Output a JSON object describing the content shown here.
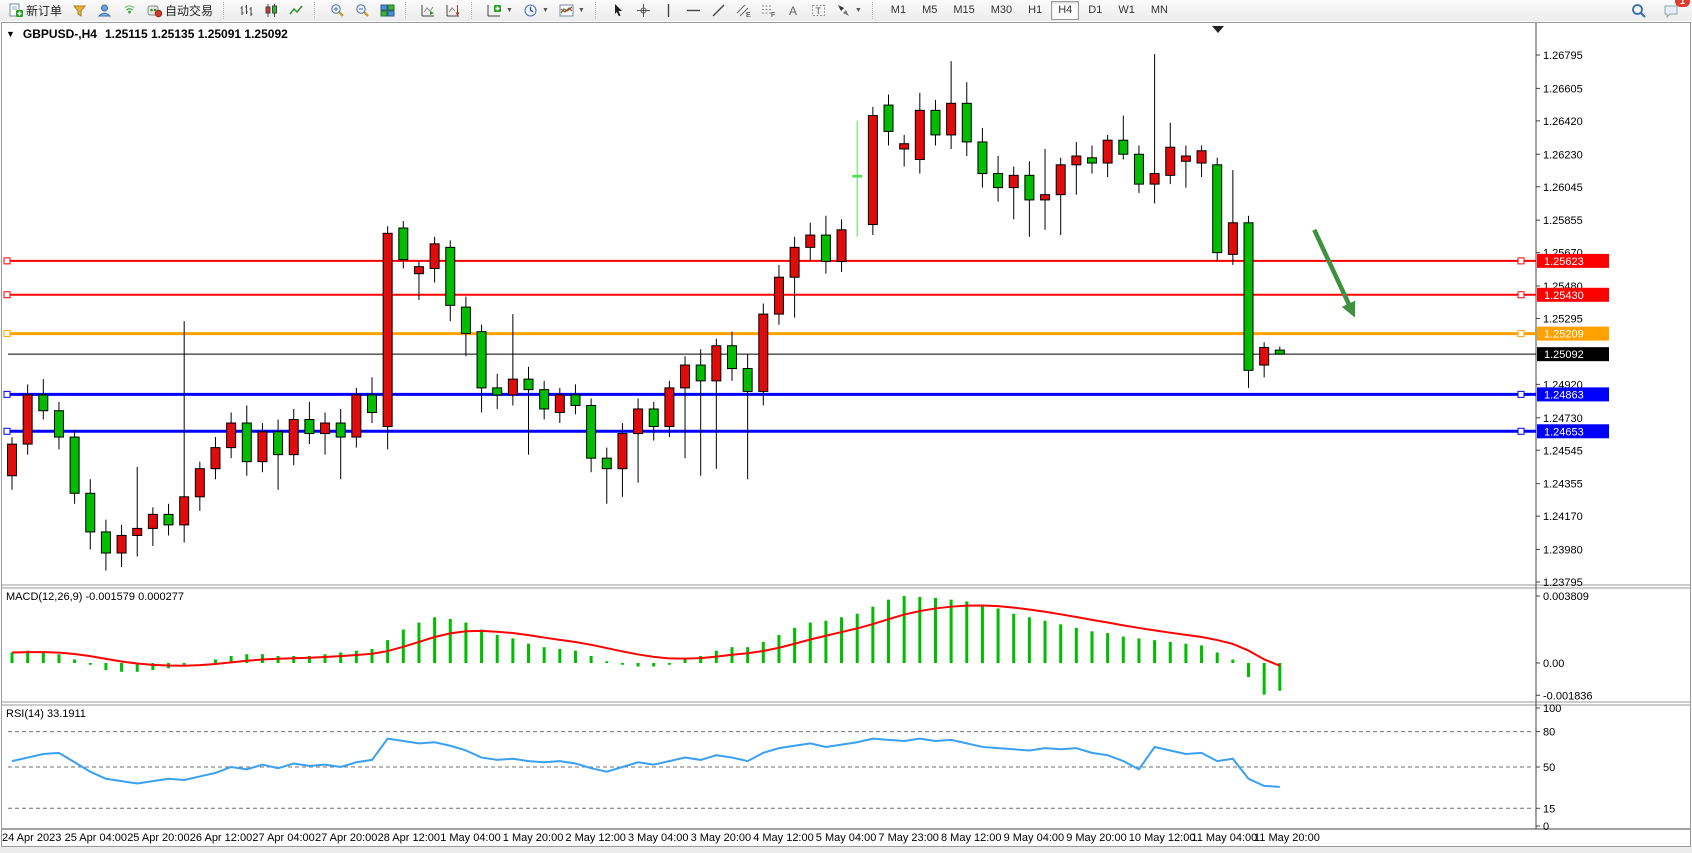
{
  "toolbar": {
    "new_order_label": "新订单",
    "autotrade_label": "自动交易",
    "timeframes": [
      "M1",
      "M5",
      "M15",
      "M30",
      "H1",
      "H4",
      "D1",
      "W1",
      "MN"
    ],
    "active_timeframe": "H4",
    "notification_count": "1"
  },
  "header": {
    "symbol": "GBPUSD-,H4",
    "ohlc": "1.25115 1.25135 1.25091 1.25092"
  },
  "price_axis": {
    "ticks": [
      "1.26795",
      "1.26605",
      "1.26420",
      "1.26230",
      "1.26045",
      "1.25855",
      "1.25670",
      "1.25480",
      "1.25295",
      "1.24920",
      "1.24730",
      "1.24545",
      "1.24355",
      "1.24170",
      "1.23980",
      "1.23795"
    ]
  },
  "hlines": [
    {
      "price": "1.25623",
      "color": "#ff0000",
      "width": 2,
      "handles": true
    },
    {
      "price": "1.25430",
      "color": "#ff0000",
      "width": 2,
      "handles": true
    },
    {
      "price": "1.25209",
      "color": "#ffa200",
      "width": 3,
      "handles": true
    },
    {
      "price": "1.25092",
      "color": "#000000",
      "width": 1,
      "handles": false,
      "is_bid": true
    },
    {
      "price": "1.24863",
      "color": "#0000ff",
      "width": 3,
      "handles": true
    },
    {
      "price": "1.24653",
      "color": "#0000ff",
      "width": 3,
      "handles": true
    }
  ],
  "macd": {
    "label": "MACD(12,26,9) -0.001579 0.000277",
    "ticks": [
      "0.003809",
      "0.00",
      "-0.001836"
    ]
  },
  "rsi": {
    "label": "RSI(14) 33.1911",
    "ticks": [
      "100",
      "80",
      "50",
      "15",
      "0"
    ],
    "level_values": [
      80,
      50,
      15
    ]
  },
  "date_axis": [
    "24 Apr 2023",
    "25 Apr 04:00",
    "25 Apr 20:00",
    "26 Apr 12:00",
    "27 Apr 04:00",
    "27 Apr 20:00",
    "28 Apr 12:00",
    "1 May 04:00",
    "1 May 20:00",
    "2 May 12:00",
    "3 May 04:00",
    "3 May 20:00",
    "4 May 12:00",
    "5 May 04:00",
    "7 May 23:00",
    "8 May 12:00",
    "9 May 04:00",
    "9 May 20:00",
    "10 May 12:00",
    "11 May 04:00",
    "11 May 20:00"
  ],
  "chart_data": {
    "type": "candlestick",
    "symbol": "GBPUSD",
    "timeframe": "H4",
    "price_range": [
      1.23795,
      1.26795
    ],
    "macd_range": [
      -0.001836,
      0.003809
    ],
    "rsi_range": [
      0,
      100
    ],
    "colors": {
      "up": "#e00b0b",
      "down": "#00bd00",
      "special": "#55e050",
      "macd_hist": "#00bd00",
      "macd_signal": "#ff0000",
      "rsi_line": "#3aa0f0",
      "arrow": "#3f9140"
    },
    "special_candle_index": 54,
    "ohlc": [
      [
        1.244,
        1.2462,
        1.2432,
        1.2458
      ],
      [
        1.2458,
        1.2492,
        1.2452,
        1.2486
      ],
      [
        1.2486,
        1.2495,
        1.2472,
        1.2477
      ],
      [
        1.2477,
        1.2482,
        1.2455,
        1.2462
      ],
      [
        1.2462,
        1.2466,
        1.2424,
        1.243
      ],
      [
        1.243,
        1.2438,
        1.2398,
        1.2408
      ],
      [
        1.2408,
        1.2415,
        1.2386,
        1.2396
      ],
      [
        1.2396,
        1.2412,
        1.2388,
        1.2406
      ],
      [
        1.2406,
        1.2445,
        1.2394,
        1.241
      ],
      [
        1.241,
        1.2422,
        1.24,
        1.2418
      ],
      [
        1.2418,
        1.2424,
        1.2406,
        1.2412
      ],
      [
        1.2412,
        1.2528,
        1.2402,
        1.2428
      ],
      [
        1.2428,
        1.2448,
        1.242,
        1.2444
      ],
      [
        1.2444,
        1.2462,
        1.2438,
        1.2456
      ],
      [
        1.2456,
        1.2476,
        1.245,
        1.247
      ],
      [
        1.247,
        1.248,
        1.244,
        1.2448
      ],
      [
        1.2448,
        1.247,
        1.2442,
        1.2465
      ],
      [
        1.2465,
        1.2472,
        1.2432,
        1.2452
      ],
      [
        1.2452,
        1.2478,
        1.2446,
        1.2472
      ],
      [
        1.2472,
        1.2482,
        1.2458,
        1.2464
      ],
      [
        1.2464,
        1.2476,
        1.2452,
        1.247
      ],
      [
        1.247,
        1.2478,
        1.2438,
        1.2462
      ],
      [
        1.2462,
        1.249,
        1.2456,
        1.2486
      ],
      [
        1.2486,
        1.2496,
        1.247,
        1.2476
      ],
      [
        1.2468,
        1.2582,
        1.2455,
        1.2578
      ],
      [
        1.2581,
        1.2585,
        1.2558,
        1.2563
      ],
      [
        1.2555,
        1.2562,
        1.254,
        1.2559
      ],
      [
        1.2558,
        1.2576,
        1.255,
        1.2572
      ],
      [
        1.257,
        1.2574,
        1.2528,
        1.2537
      ],
      [
        1.2536,
        1.2542,
        1.2508,
        1.2521
      ],
      [
        1.2522,
        1.2526,
        1.2476,
        1.249
      ],
      [
        1.249,
        1.2498,
        1.2478,
        1.2486
      ],
      [
        1.2486,
        1.2532,
        1.248,
        1.2495
      ],
      [
        1.2495,
        1.2502,
        1.2452,
        1.2489
      ],
      [
        1.2489,
        1.2494,
        1.2472,
        1.2478
      ],
      [
        1.2476,
        1.249,
        1.247,
        1.2486
      ],
      [
        1.2486,
        1.2492,
        1.2475,
        1.248
      ],
      [
        1.248,
        1.2484,
        1.2442,
        1.245
      ],
      [
        1.245,
        1.2456,
        1.2424,
        1.2444
      ],
      [
        1.2444,
        1.247,
        1.2428,
        1.2464
      ],
      [
        1.2464,
        1.2484,
        1.2436,
        1.2478
      ],
      [
        1.2478,
        1.2482,
        1.246,
        1.2468
      ],
      [
        1.2468,
        1.2494,
        1.2462,
        1.249
      ],
      [
        1.249,
        1.2508,
        1.245,
        1.2503
      ],
      [
        1.2503,
        1.2512,
        1.244,
        1.2494
      ],
      [
        1.2494,
        1.2518,
        1.2444,
        1.2514
      ],
      [
        1.2514,
        1.2522,
        1.2494,
        1.2501
      ],
      [
        1.2501,
        1.2509,
        1.2438,
        1.2488
      ],
      [
        1.2488,
        1.2538,
        1.248,
        1.2532
      ],
      [
        1.2532,
        1.256,
        1.2526,
        1.2553
      ],
      [
        1.2553,
        1.2576,
        1.253,
        1.257
      ],
      [
        1.257,
        1.2584,
        1.2562,
        1.2577
      ],
      [
        1.2577,
        1.2588,
        1.2555,
        1.2562
      ],
      [
        1.2562,
        1.2586,
        1.2556,
        1.258
      ],
      [
        1.261,
        1.2642,
        1.2576,
        1.2611
      ],
      [
        1.2583,
        1.265,
        1.2577,
        1.2645
      ],
      [
        1.2651,
        1.2657,
        1.2628,
        1.2636
      ],
      [
        1.2626,
        1.2634,
        1.2616,
        1.2629
      ],
      [
        1.262,
        1.2658,
        1.2612,
        1.2648
      ],
      [
        1.2648,
        1.2654,
        1.2628,
        1.2634
      ],
      [
        1.2634,
        1.2676,
        1.2626,
        1.2652
      ],
      [
        1.2652,
        1.2664,
        1.2622,
        1.263
      ],
      [
        1.263,
        1.2638,
        1.2604,
        1.2612
      ],
      [
        1.2612,
        1.2622,
        1.2596,
        1.2604
      ],
      [
        1.2604,
        1.2616,
        1.2586,
        1.2611
      ],
      [
        1.2611,
        1.2619,
        1.2576,
        1.2597
      ],
      [
        1.2597,
        1.2626,
        1.258,
        1.26
      ],
      [
        1.26,
        1.2621,
        1.2577,
        1.2617
      ],
      [
        1.2617,
        1.263,
        1.26,
        1.2622
      ],
      [
        1.2621,
        1.2628,
        1.2612,
        1.2618
      ],
      [
        1.2618,
        1.2634,
        1.261,
        1.2631
      ],
      [
        1.2631,
        1.2645,
        1.262,
        1.2623
      ],
      [
        1.2623,
        1.2628,
        1.2601,
        1.2606
      ],
      [
        1.2606,
        1.268,
        1.2595,
        1.2612
      ],
      [
        1.2611,
        1.2641,
        1.2606,
        1.2627
      ],
      [
        1.2619,
        1.2628,
        1.2604,
        1.2622
      ],
      [
        1.2618,
        1.2628,
        1.261,
        1.2625
      ],
      [
        1.2617,
        1.2621,
        1.2562,
        1.2567
      ],
      [
        1.2566,
        1.2614,
        1.256,
        1.2584
      ],
      [
        1.2584,
        1.2588,
        1.249,
        1.25
      ],
      [
        1.2503,
        1.2516,
        1.2496,
        1.2513
      ],
      [
        1.25115,
        1.25135,
        1.25091,
        1.25092
      ]
    ],
    "macd_main": [
      0.0006,
      0.0007,
      0.0006,
      0.0005,
      0.0002,
      -0.0001,
      -0.0004,
      -0.0005,
      -0.0005,
      -0.0004,
      -0.0003,
      -0.0002,
      0.0,
      0.0002,
      0.0004,
      0.0005,
      0.0005,
      0.0004,
      0.0004,
      0.0004,
      0.0005,
      0.0006,
      0.0007,
      0.0008,
      0.0013,
      0.0019,
      0.0023,
      0.0026,
      0.0025,
      0.0023,
      0.0019,
      0.0016,
      0.0014,
      0.0011,
      0.0009,
      0.0008,
      0.0007,
      0.0004,
      0.0001,
      -0.0001,
      -0.0002,
      -0.0002,
      -0.0001,
      0.0002,
      0.0004,
      0.0007,
      0.0009,
      0.0009,
      0.0012,
      0.0016,
      0.002,
      0.0023,
      0.0024,
      0.0026,
      0.0028,
      0.0032,
      0.0036,
      0.0038,
      0.00375,
      0.0037,
      0.0036,
      0.0035,
      0.0033,
      0.0031,
      0.0028,
      0.0026,
      0.0024,
      0.0022,
      0.002,
      0.0018,
      0.0017,
      0.0015,
      0.0014,
      0.0013,
      0.0012,
      0.0011,
      0.001,
      0.0006,
      0.0002,
      -0.0008,
      -0.0018,
      -0.001579
    ],
    "rsi_values": [
      55,
      58,
      61,
      62,
      54,
      46,
      40,
      38,
      36,
      38,
      40,
      39,
      42,
      45,
      50,
      48,
      52,
      49,
      53,
      51,
      52,
      50,
      54,
      56,
      74,
      72,
      70,
      71,
      68,
      64,
      58,
      56,
      57,
      55,
      54,
      55,
      53,
      49,
      46,
      50,
      54,
      52,
      55,
      58,
      56,
      60,
      58,
      55,
      62,
      66,
      68,
      70,
      67,
      69,
      71,
      74,
      73,
      72,
      74,
      72,
      73,
      70,
      67,
      66,
      65,
      64,
      66,
      65,
      66,
      62,
      60,
      55,
      48,
      67,
      64,
      61,
      62,
      55,
      57,
      40,
      34,
      33.19
    ],
    "annotation_arrow": {
      "start_bar": 83.2,
      "start_price": 1.258,
      "end_bar": 85.8,
      "end_price": 1.253,
      "direction": "down-right"
    }
  }
}
